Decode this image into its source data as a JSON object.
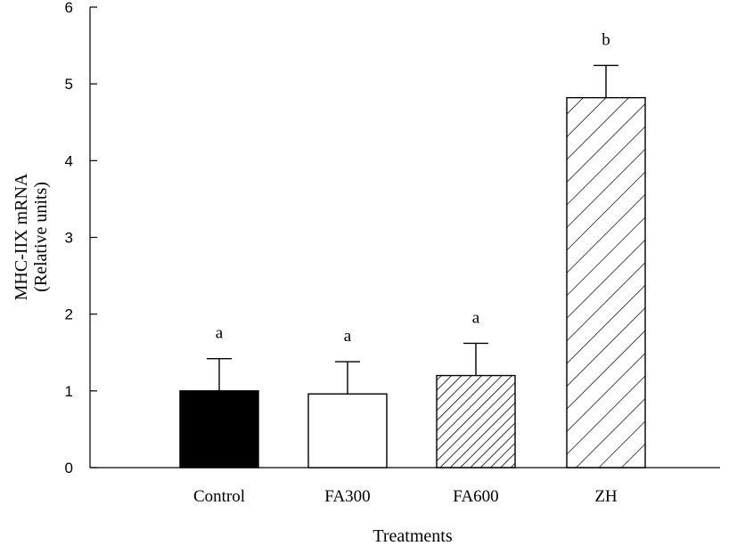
{
  "chart_data": {
    "type": "bar",
    "categories": [
      "Control",
      "FA300",
      "FA600",
      "ZH"
    ],
    "values": [
      1.0,
      0.96,
      1.2,
      4.82
    ],
    "errors": [
      0.42,
      0.42,
      0.42,
      0.42
    ],
    "significance": [
      "a",
      "a",
      "a",
      "b"
    ],
    "fills": [
      "solid",
      "white",
      "dense-hatch",
      "sparse-hatch"
    ],
    "xlabel": "Treatments",
    "ylabel_lines": [
      "MHC-IIX mRNA",
      "(Relative units)"
    ],
    "ylim": [
      0,
      6
    ],
    "yticks": [
      "0",
      "1",
      "2",
      "3",
      "4",
      "5",
      "6"
    ],
    "grid": false
  }
}
